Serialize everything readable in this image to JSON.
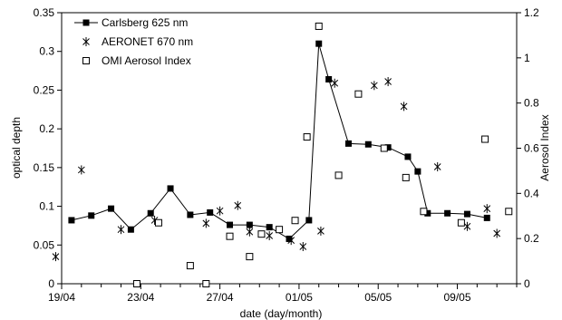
{
  "chart_data": {
    "type": "scatter",
    "xlabel": "date (day/month)",
    "ylabel": "optical depth",
    "y2label": "Aerosol Index",
    "x_ticks": [
      "19/04",
      "23/04",
      "27/04",
      "01/05",
      "05/05",
      "09/05"
    ],
    "ylim": [
      0,
      0.35
    ],
    "y_ticks": [
      "0",
      "0.05",
      "0.1",
      "0.15",
      "0.2",
      "0.25",
      "0.3",
      "0.35"
    ],
    "y2lim": [
      0,
      1.2
    ],
    "y2_ticks": [
      "0",
      "0.2",
      "0.4",
      "0.6",
      "0.8",
      "1",
      "1.2"
    ],
    "xlim_days": [
      0,
      23
    ],
    "legend_position": "top-left",
    "grid": false,
    "series": [
      {
        "name": "Carlsberg 625 nm",
        "style": "line-square",
        "axis": "left",
        "x": [
          0.5,
          1.5,
          2.5,
          3.5,
          4.5,
          5.5,
          6.5,
          7.5,
          8.5,
          9.5,
          10.5,
          11.5,
          12.5,
          13.0,
          13.5,
          14.5,
          15.5,
          16.5,
          17.5,
          18.0,
          18.5,
          19.5,
          20.5,
          21.5
        ],
        "y": [
          0.082,
          0.088,
          0.097,
          0.07,
          0.091,
          0.123,
          0.089,
          0.092,
          0.076,
          0.076,
          0.073,
          0.058,
          0.082,
          0.31,
          0.264,
          0.181,
          0.18,
          0.176,
          0.164,
          0.145,
          0.091,
          0.091,
          0.09,
          0.085
        ]
      },
      {
        "name": "AERONET 670 nm",
        "style": "asterisk",
        "axis": "left",
        "x": [
          -0.3,
          1.0,
          3.0,
          4.7,
          7.3,
          8.0,
          8.9,
          9.5,
          10.5,
          11.6,
          12.2,
          13.1,
          13.8,
          15.8,
          16.5,
          17.3,
          19.0,
          20.5,
          21.5,
          22.0
        ],
        "y": [
          0.035,
          0.147,
          0.07,
          0.082,
          0.078,
          0.094,
          0.101,
          0.067,
          0.062,
          0.056,
          0.048,
          0.068,
          0.259,
          0.256,
          0.261,
          0.229,
          0.151,
          0.074,
          0.097,
          0.065
        ]
      },
      {
        "name": "OMI Aerosol Index",
        "style": "open-square",
        "axis": "right",
        "x": [
          3.8,
          4.9,
          6.5,
          7.3,
          8.5,
          9.5,
          10.1,
          11.0,
          11.8,
          12.4,
          13.0,
          14.0,
          15.0,
          16.3,
          17.4,
          18.3,
          20.2,
          21.4,
          22.6
        ],
        "y": [
          0.0,
          0.27,
          0.08,
          0.0,
          0.21,
          0.12,
          0.22,
          0.24,
          0.28,
          0.65,
          1.14,
          0.48,
          0.84,
          0.6,
          0.47,
          0.32,
          0.27,
          0.64,
          0.32
        ]
      }
    ]
  }
}
